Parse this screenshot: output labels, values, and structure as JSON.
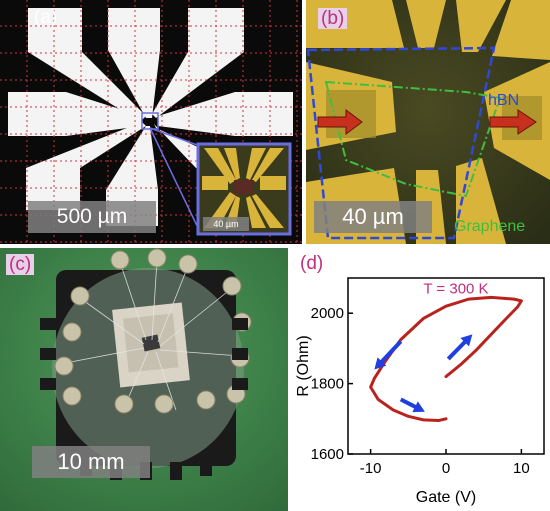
{
  "panel_a": {
    "label": "(a)",
    "scale_bar": "500 µm",
    "inset_scale_bar": "40 µm",
    "colors": {
      "background": "#0a0a0a",
      "pads": "#f4f4f4",
      "grid": "#d0343c",
      "inset_frame": "#6a6ee0"
    }
  },
  "panel_b": {
    "label": "(b)",
    "scale_bar": "40 µm",
    "hbn_label": "hBN",
    "graphene_label": "Graphene",
    "colors": {
      "background": "#2f3418",
      "gold": "#d9b43a",
      "hbn_outline": "#3048d8",
      "graphene_outline": "#3fbf3f",
      "arrow": "#c8301e"
    }
  },
  "panel_c": {
    "label": "(c)",
    "scale_bar": "10 mm",
    "colors": {
      "board": "#3f8a4c",
      "pins": "#c9c3a9",
      "chip": "#d9d4c6"
    }
  },
  "panel_d": {
    "label": "(d)",
    "annotation": "T = 300 K",
    "colors": {
      "curve": "#b8231e",
      "arrows": "#1f3fe0",
      "annotation": "#c0307a"
    }
  },
  "chart_data": {
    "type": "line",
    "title": "",
    "xlabel": "Gate (V)",
    "ylabel": "R (Ohm)",
    "xlim": [
      -13,
      13
    ],
    "ylim": [
      1600,
      2100
    ],
    "xticks": [
      -10,
      0,
      10
    ],
    "yticks": [
      1600,
      1800,
      2000
    ],
    "annotation": "T = 300 K",
    "grid": false,
    "series": [
      {
        "x": [
          0,
          2,
          4,
          6,
          8,
          9.5,
          10,
          9,
          6,
          3,
          0,
          -3,
          -6,
          -8,
          -9.5,
          -10,
          -9,
          -7,
          -5,
          -3,
          -1,
          0
        ],
        "y": [
          1820,
          1855,
          1895,
          1940,
          1985,
          2018,
          2035,
          2040,
          2045,
          2040,
          2020,
          1985,
          1925,
          1865,
          1815,
          1790,
          1755,
          1725,
          1707,
          1697,
          1695,
          1700
        ]
      }
    ],
    "arrows": [
      {
        "from": [
          -6,
          1920
        ],
        "to": [
          -9.5,
          1840
        ]
      },
      {
        "from": [
          -6,
          1755
        ],
        "to": [
          -2.8,
          1720
        ]
      },
      {
        "from": [
          0.3,
          1870
        ],
        "to": [
          3.5,
          1940
        ]
      }
    ]
  }
}
